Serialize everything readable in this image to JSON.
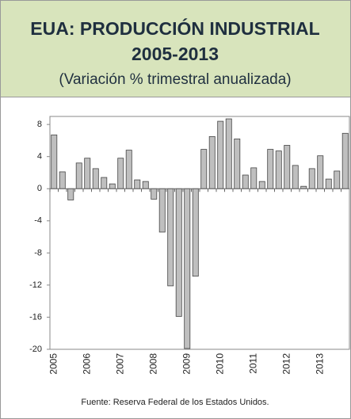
{
  "chart_data": {
    "type": "bar",
    "title": [
      "EUA: PRODUCCIÓN INDUSTRIAL",
      "2005-2013"
    ],
    "subtitle": "(Variación % trimestral anualizada)",
    "source": "Fuente:  Reserva Federal de los Estados Unidos.",
    "categories": [
      "2005",
      null,
      null,
      null,
      "2006",
      null,
      null,
      null,
      "2007",
      null,
      null,
      null,
      "2008",
      null,
      null,
      null,
      "2009",
      null,
      null,
      null,
      "2010",
      null,
      null,
      null,
      "2011",
      null,
      null,
      null,
      "2012",
      null,
      null,
      null,
      "2013",
      null,
      null,
      null
    ],
    "values": [
      6.7,
      2.1,
      -1.4,
      3.2,
      3.8,
      2.5,
      1.4,
      0.6,
      3.8,
      4.8,
      1.1,
      0.9,
      -1.3,
      -5.4,
      -12.1,
      -15.9,
      -19.9,
      -10.9,
      4.9,
      6.5,
      8.4,
      8.7,
      6.2,
      1.7,
      2.6,
      0.9,
      4.9,
      4.7,
      5.4,
      2.9,
      0.3,
      2.5,
      4.1,
      1.2,
      2.2,
      6.9
    ],
    "color": "#bfbfbf",
    "ylim": [
      -20,
      9
    ],
    "yticks": [
      -20,
      -16,
      -12,
      -8,
      -4,
      0,
      4,
      8
    ],
    "grid": false
  }
}
